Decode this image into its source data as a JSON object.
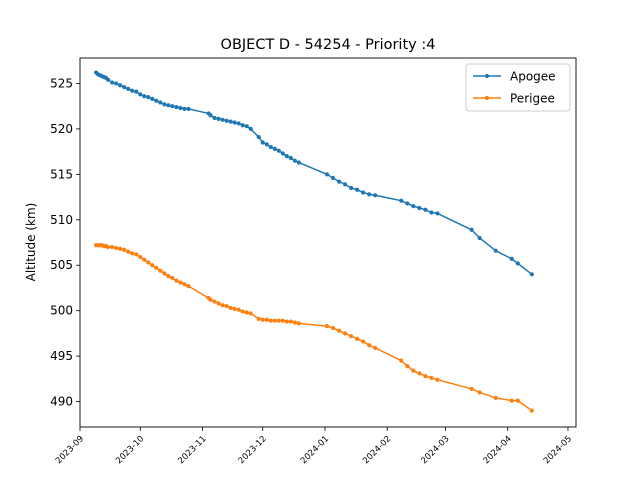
{
  "chart_data": {
    "type": "line",
    "title": "OBJECT D - 54254 - Priority :4",
    "xlabel": "",
    "ylabel": "Altitude (km)",
    "x_type": "date",
    "xlim": [
      "2023-09-01",
      "2024-05-05"
    ],
    "ylim": [
      487.2,
      527.8
    ],
    "x_ticks": [
      "2023-09",
      "2023-10",
      "2023-11",
      "2023-12",
      "2024-01",
      "2024-02",
      "2024-03",
      "2024-04",
      "2024-05"
    ],
    "y_ticks": [
      490,
      495,
      500,
      505,
      510,
      515,
      520,
      525
    ],
    "grid": false,
    "legend_position": "top-right",
    "series": [
      {
        "name": "Apogee",
        "color": "#1f77b4",
        "points": [
          [
            "2023-09-09",
            526.2
          ],
          [
            "2023-09-10",
            526.0
          ],
          [
            "2023-09-11",
            525.9
          ],
          [
            "2023-09-12",
            525.8
          ],
          [
            "2023-09-13",
            525.7
          ],
          [
            "2023-09-14",
            525.6
          ],
          [
            "2023-09-15",
            525.4
          ],
          [
            "2023-09-17",
            525.1
          ],
          [
            "2023-09-19",
            525.0
          ],
          [
            "2023-09-21",
            524.8
          ],
          [
            "2023-09-23",
            524.6
          ],
          [
            "2023-09-25",
            524.4
          ],
          [
            "2023-09-27",
            524.2
          ],
          [
            "2023-09-29",
            524.1
          ],
          [
            "2023-10-01",
            523.8
          ],
          [
            "2023-10-03",
            523.6
          ],
          [
            "2023-10-05",
            523.5
          ],
          [
            "2023-10-07",
            523.3
          ],
          [
            "2023-10-09",
            523.1
          ],
          [
            "2023-10-11",
            522.9
          ],
          [
            "2023-10-13",
            522.7
          ],
          [
            "2023-10-15",
            522.6
          ],
          [
            "2023-10-17",
            522.5
          ],
          [
            "2023-10-19",
            522.4
          ],
          [
            "2023-10-21",
            522.3
          ],
          [
            "2023-10-23",
            522.2
          ],
          [
            "2023-10-25",
            522.2
          ],
          [
            "2023-11-04",
            521.7
          ],
          [
            "2023-11-05",
            521.5
          ],
          [
            "2023-11-07",
            521.2
          ],
          [
            "2023-11-09",
            521.1
          ],
          [
            "2023-11-11",
            521.0
          ],
          [
            "2023-11-13",
            520.9
          ],
          [
            "2023-11-15",
            520.8
          ],
          [
            "2023-11-17",
            520.7
          ],
          [
            "2023-11-19",
            520.6
          ],
          [
            "2023-11-21",
            520.4
          ],
          [
            "2023-11-23",
            520.3
          ],
          [
            "2023-11-25",
            520.0
          ],
          [
            "2023-11-29",
            519.1
          ],
          [
            "2023-12-01",
            518.5
          ],
          [
            "2023-12-03",
            518.3
          ],
          [
            "2023-12-05",
            518.0
          ],
          [
            "2023-12-07",
            517.8
          ],
          [
            "2023-12-09",
            517.6
          ],
          [
            "2023-12-11",
            517.3
          ],
          [
            "2023-12-13",
            517.0
          ],
          [
            "2023-12-15",
            516.8
          ],
          [
            "2023-12-17",
            516.5
          ],
          [
            "2023-12-19",
            516.3
          ],
          [
            "2024-01-02",
            515.0
          ],
          [
            "2024-01-05",
            514.6
          ],
          [
            "2024-01-08",
            514.2
          ],
          [
            "2024-01-11",
            513.9
          ],
          [
            "2024-01-14",
            513.5
          ],
          [
            "2024-01-17",
            513.3
          ],
          [
            "2024-01-20",
            513.0
          ],
          [
            "2024-01-23",
            512.8
          ],
          [
            "2024-01-26",
            512.7
          ],
          [
            "2024-02-08",
            512.1
          ],
          [
            "2024-02-11",
            511.8
          ],
          [
            "2024-02-14",
            511.5
          ],
          [
            "2024-02-17",
            511.3
          ],
          [
            "2024-02-20",
            511.1
          ],
          [
            "2024-02-23",
            510.8
          ],
          [
            "2024-02-26",
            510.7
          ],
          [
            "2024-03-14",
            508.9
          ],
          [
            "2024-03-18",
            508.0
          ],
          [
            "2024-03-26",
            506.6
          ],
          [
            "2024-04-03",
            505.7
          ],
          [
            "2024-04-06",
            505.2
          ],
          [
            "2024-04-13",
            504.0
          ]
        ]
      },
      {
        "name": "Perigee",
        "color": "#ff7f0e",
        "points": [
          [
            "2023-09-09",
            507.2
          ],
          [
            "2023-09-10",
            507.2
          ],
          [
            "2023-09-11",
            507.2
          ],
          [
            "2023-09-12",
            507.2
          ],
          [
            "2023-09-13",
            507.1
          ],
          [
            "2023-09-14",
            507.1
          ],
          [
            "2023-09-15",
            507.0
          ],
          [
            "2023-09-17",
            507.0
          ],
          [
            "2023-09-19",
            506.9
          ],
          [
            "2023-09-21",
            506.8
          ],
          [
            "2023-09-23",
            506.7
          ],
          [
            "2023-09-25",
            506.5
          ],
          [
            "2023-09-27",
            506.3
          ],
          [
            "2023-09-29",
            506.2
          ],
          [
            "2023-10-01",
            505.9
          ],
          [
            "2023-10-03",
            505.6
          ],
          [
            "2023-10-05",
            505.3
          ],
          [
            "2023-10-07",
            505.0
          ],
          [
            "2023-10-09",
            504.7
          ],
          [
            "2023-10-11",
            504.4
          ],
          [
            "2023-10-13",
            504.1
          ],
          [
            "2023-10-15",
            503.8
          ],
          [
            "2023-10-17",
            503.6
          ],
          [
            "2023-10-19",
            503.3
          ],
          [
            "2023-10-21",
            503.1
          ],
          [
            "2023-10-23",
            502.9
          ],
          [
            "2023-10-25",
            502.7
          ],
          [
            "2023-11-04",
            501.4
          ],
          [
            "2023-11-05",
            501.2
          ],
          [
            "2023-11-07",
            501.0
          ],
          [
            "2023-11-09",
            500.8
          ],
          [
            "2023-11-11",
            500.6
          ],
          [
            "2023-11-13",
            500.5
          ],
          [
            "2023-11-15",
            500.3
          ],
          [
            "2023-11-17",
            500.2
          ],
          [
            "2023-11-19",
            500.1
          ],
          [
            "2023-11-21",
            499.9
          ],
          [
            "2023-11-23",
            499.8
          ],
          [
            "2023-11-25",
            499.7
          ],
          [
            "2023-11-29",
            499.1
          ],
          [
            "2023-12-01",
            499.0
          ],
          [
            "2023-12-03",
            499.0
          ],
          [
            "2023-12-05",
            498.9
          ],
          [
            "2023-12-07",
            498.9
          ],
          [
            "2023-12-09",
            498.9
          ],
          [
            "2023-12-11",
            498.9
          ],
          [
            "2023-12-13",
            498.8
          ],
          [
            "2023-12-15",
            498.8
          ],
          [
            "2023-12-17",
            498.7
          ],
          [
            "2023-12-19",
            498.6
          ],
          [
            "2024-01-02",
            498.3
          ],
          [
            "2024-01-05",
            498.1
          ],
          [
            "2024-01-08",
            497.8
          ],
          [
            "2024-01-11",
            497.5
          ],
          [
            "2024-01-14",
            497.2
          ],
          [
            "2024-01-17",
            496.9
          ],
          [
            "2024-01-20",
            496.6
          ],
          [
            "2024-01-23",
            496.2
          ],
          [
            "2024-01-26",
            495.9
          ],
          [
            "2024-02-08",
            494.5
          ],
          [
            "2024-02-11",
            493.9
          ],
          [
            "2024-02-14",
            493.4
          ],
          [
            "2024-02-17",
            493.1
          ],
          [
            "2024-02-20",
            492.8
          ],
          [
            "2024-02-23",
            492.6
          ],
          [
            "2024-02-26",
            492.4
          ],
          [
            "2024-03-14",
            491.4
          ],
          [
            "2024-03-18",
            491.0
          ],
          [
            "2024-03-26",
            490.4
          ],
          [
            "2024-04-03",
            490.1
          ],
          [
            "2024-04-06",
            490.1
          ],
          [
            "2024-04-13",
            489.0
          ]
        ]
      }
    ]
  }
}
